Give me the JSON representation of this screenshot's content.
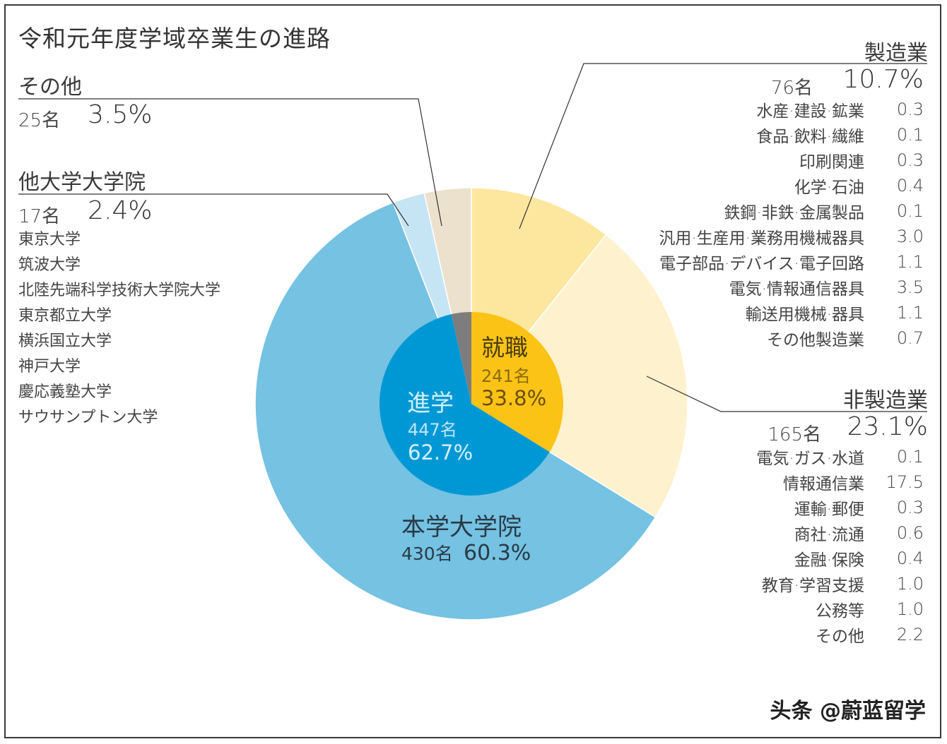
{
  "chart_data": {
    "type": "pie",
    "title": "令和元年度学域卒業生の進路",
    "inner": [
      {
        "name": "進学",
        "count": "447名",
        "percent": "62.7%",
        "value": 62.7,
        "color": "#0098d4"
      },
      {
        "name": "就職",
        "count": "241名",
        "percent": "33.8%",
        "value": 33.8,
        "color": "#fbc316"
      },
      {
        "name": "その他",
        "value": 3.5,
        "color": "#7d7d7d"
      }
    ],
    "outer": [
      {
        "name": "製造業",
        "count": "76名",
        "percent": "10.7%",
        "value": 10.7,
        "color": "#fde79f"
      },
      {
        "name": "非製造業",
        "count": "165名",
        "percent": "23.1%",
        "value": 23.1,
        "color": "#fef1cd"
      },
      {
        "name": "本学大学院",
        "count": "430名",
        "percent": "60.3%",
        "value": 60.3,
        "color": "#75c2e2"
      },
      {
        "name": "他大学大学院",
        "count": "17名",
        "percent": "2.4%",
        "value": 2.4,
        "color": "#c6e5f4"
      },
      {
        "name": "その他",
        "count": "25名",
        "percent": "3.5%",
        "value": 3.5,
        "color": "#ebe1cd"
      }
    ],
    "other_universities": [
      "東京大学",
      "筑波大学",
      "北陸先端科学技術大学院大学",
      "東京都立大学",
      "横浜国立大学",
      "神戸大学",
      "慶応義塾大学",
      "サウサンプトン大学"
    ],
    "manufacturing_breakdown": [
      {
        "label": "水産·建設·鉱業",
        "value": "0.3"
      },
      {
        "label": "食品·飲料·繊維",
        "value": "0.1"
      },
      {
        "label": "印刷関連",
        "value": "0.3"
      },
      {
        "label": "化学·石油",
        "value": "0.4"
      },
      {
        "label": "鉄鋼·非鉄·金属製品",
        "value": "0.1"
      },
      {
        "label": "汎用·生産用·業務用機械器具",
        "value": "3.0"
      },
      {
        "label": "電子部品·デバイス·電子回路",
        "value": "1.1"
      },
      {
        "label": "電気·情報通信器具",
        "value": "3.5"
      },
      {
        "label": "輸送用機械·器具",
        "value": "1.1"
      },
      {
        "label": "その他製造業",
        "value": "0.7"
      }
    ],
    "non_manufacturing_breakdown": [
      {
        "label": "電気·ガス·水道",
        "value": "0.1"
      },
      {
        "label": "情報通信業",
        "value": "17.5"
      },
      {
        "label": "運輸·郵便",
        "value": "0.3"
      },
      {
        "label": "商社·流通",
        "value": "0.6"
      },
      {
        "label": "金融·保険",
        "value": "0.4"
      },
      {
        "label": "教育·学習支援",
        "value": "1.0"
      },
      {
        "label": "公務等",
        "value": "1.0"
      },
      {
        "label": "その他",
        "value": "2.2"
      }
    ]
  },
  "watermark": "头条 @蔚蓝留学"
}
